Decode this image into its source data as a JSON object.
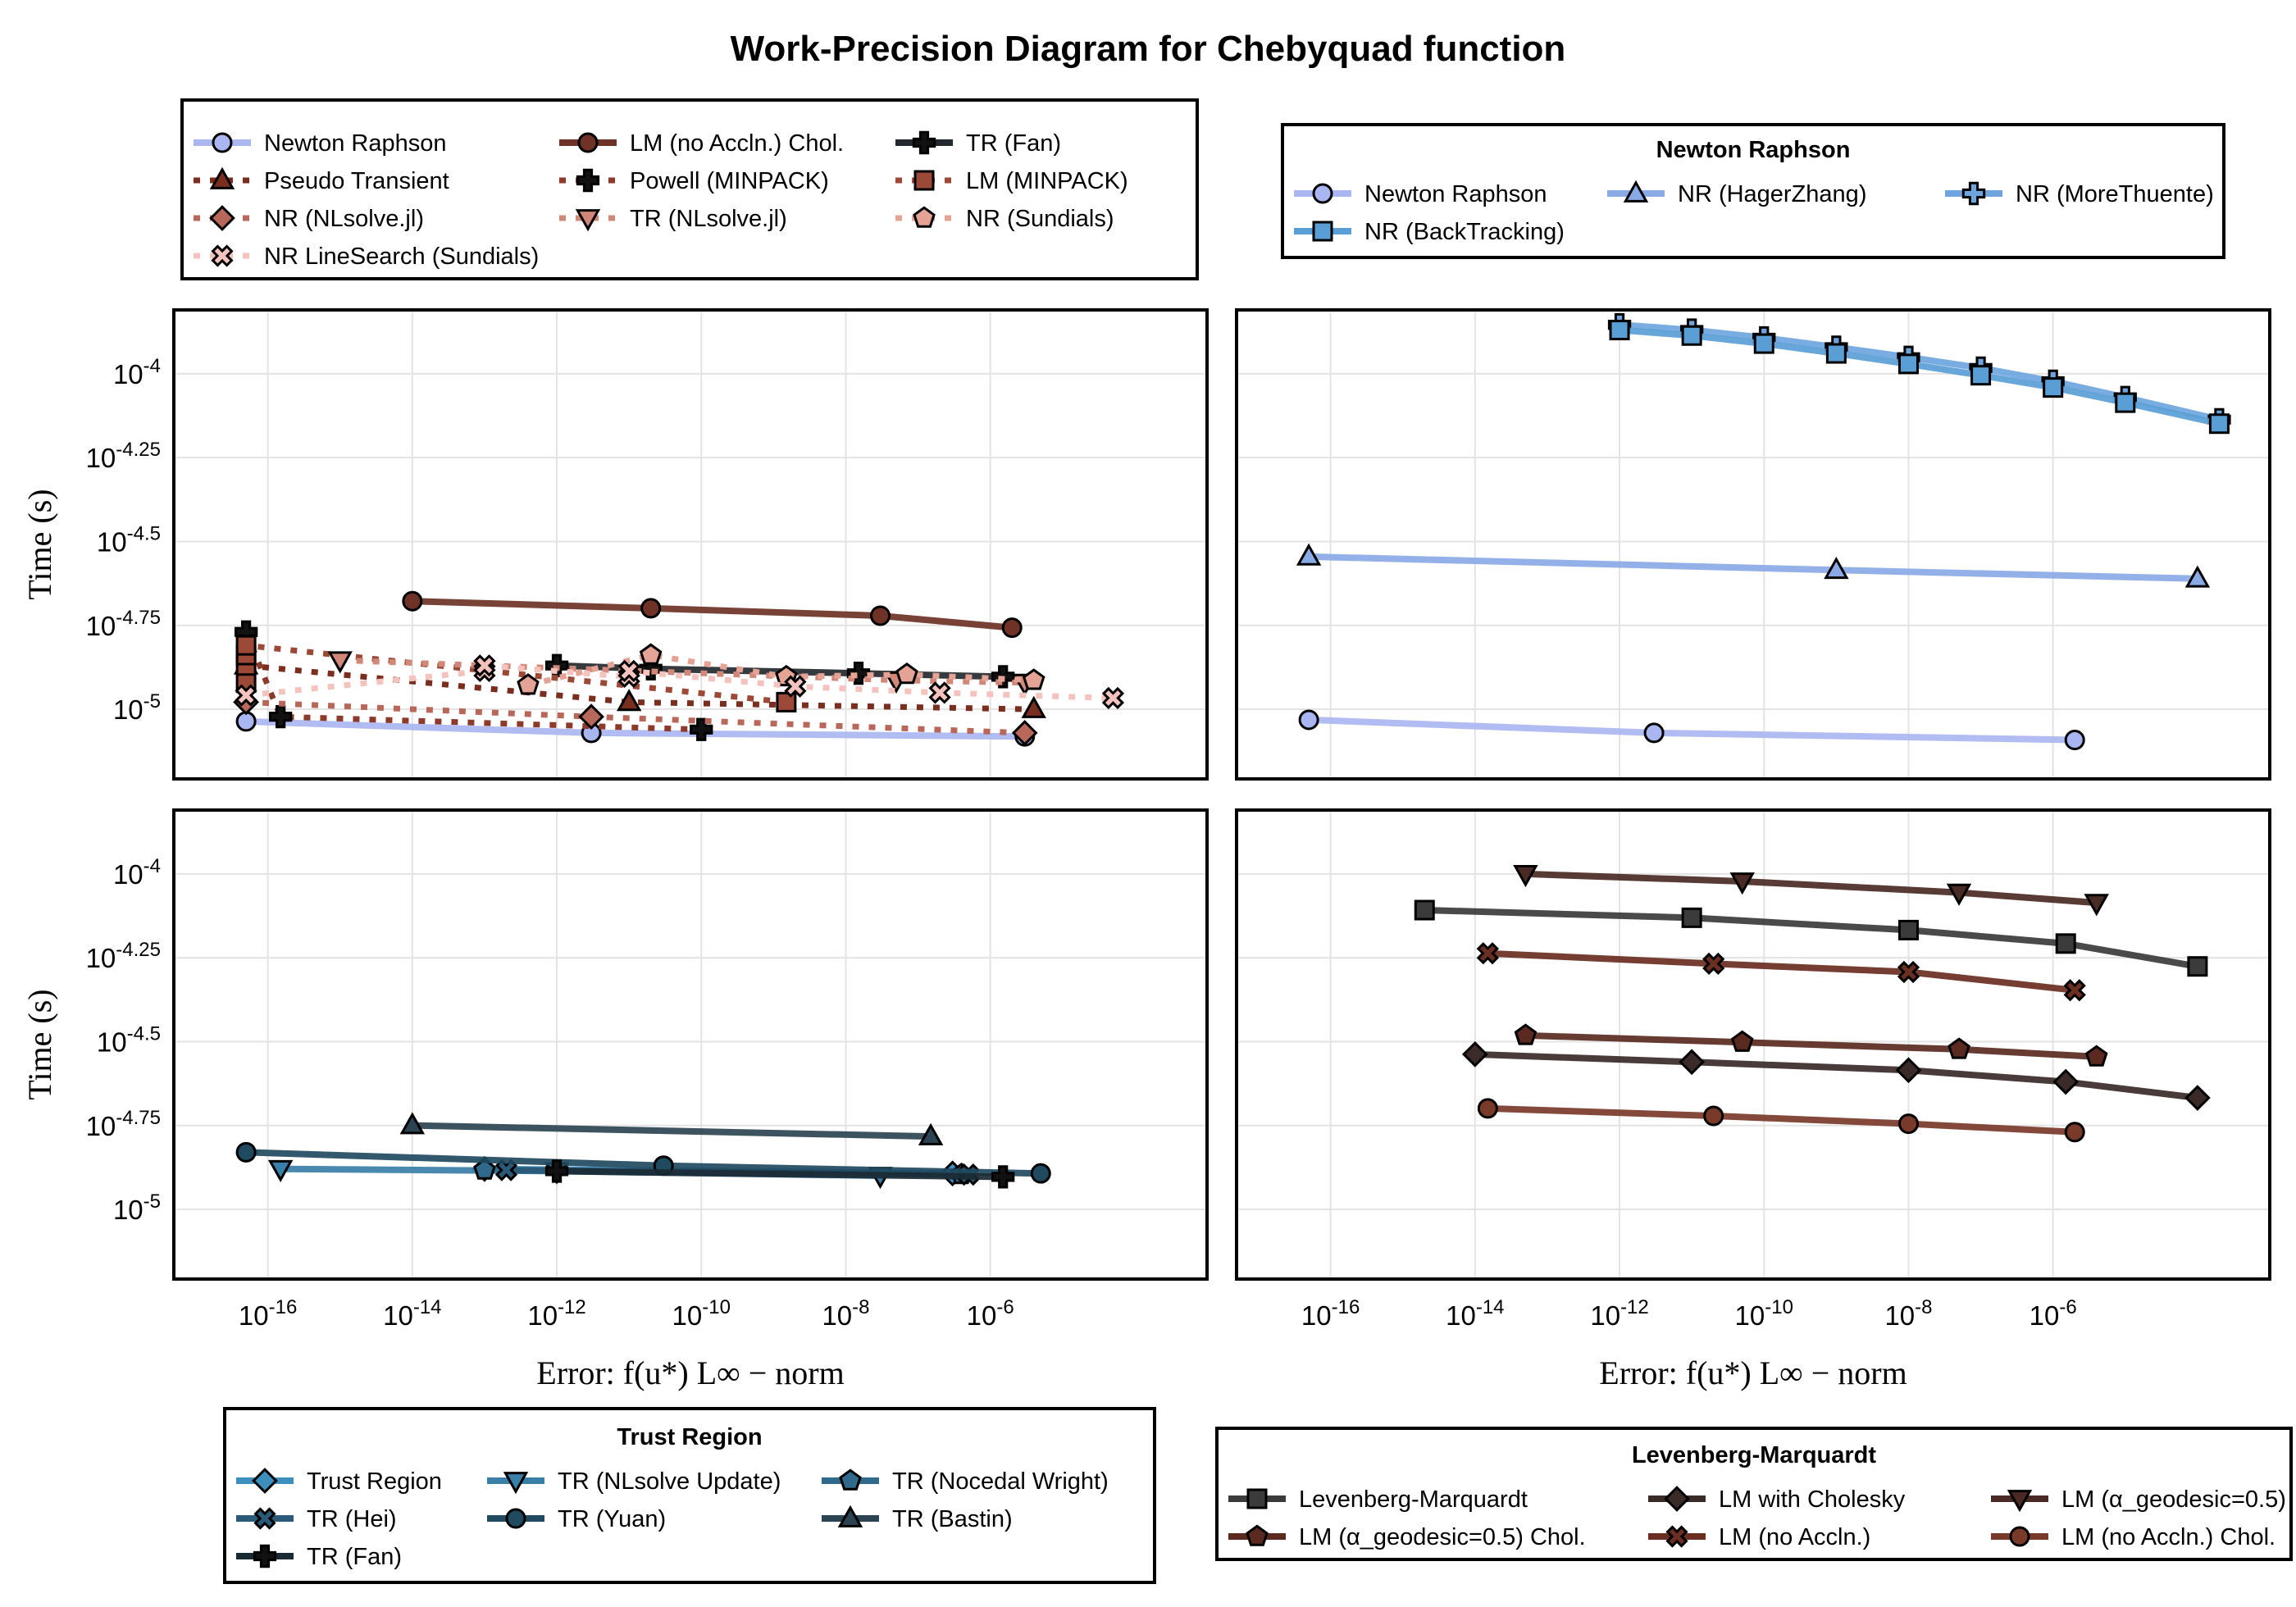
{
  "title": "Work-Precision Diagram for Chebyquad function",
  "x_ticks": [
    "10^-16",
    "10^-14",
    "10^-12",
    "10^-10",
    "10^-8",
    "10^-6"
  ],
  "y_ticks": [
    "10^-4",
    "10^-4.25",
    "10^-4.5",
    "10^-4.75",
    "10^-5"
  ],
  "xlabel": "Error: f(u*) L∞ − norm",
  "ylabel": "Time (s)",
  "chart_data": [
    {
      "type": "line",
      "panel": "top-left",
      "xscale": "log",
      "yscale": "log",
      "xlim": [
        5e-18,
        0.001
      ],
      "ylim": [
        6.2e-06,
        0.000155
      ],
      "grid": true,
      "legend": {
        "title": "",
        "placement": "top-left",
        "columns": 3
      },
      "series": [
        {
          "name": "Newton Raphson",
          "color": "#aab6f2",
          "style": "solid",
          "marker": "circle",
          "x": [
            5e-17,
            3e-12,
            3e-06
          ],
          "y": [
            9.2e-06,
            8.5e-06,
            8.3e-06
          ]
        },
        {
          "name": "LM (no Accln.) Chol.",
          "color": "#6e3226",
          "style": "solid",
          "marker": "circle",
          "x": [
            1e-14,
            2e-11,
            3e-08,
            2e-06
          ],
          "y": [
            2.1e-05,
            2e-05,
            1.9e-05,
            1.75e-05
          ]
        },
        {
          "name": "TR (Fan)",
          "color": "#23292e",
          "style": "solid",
          "marker": "cross",
          "x": [
            1e-12,
            2e-11,
            1.5e-08,
            1.5e-06
          ],
          "y": [
            1.35e-05,
            1.32e-05,
            1.28e-05,
            1.25e-05
          ]
        },
        {
          "name": "Pseudo Transient",
          "color": "#7a2e20",
          "style": "dotted",
          "marker": "triangle",
          "x": [
            5e-17,
            1e-11,
            4e-06
          ],
          "y": [
            1.35e-05,
            1.05e-05,
            1e-05
          ]
        },
        {
          "name": "Powell (MINPACK)",
          "color": "#8b3a2b",
          "style": "dotted",
          "marker": "cross",
          "x": [
            5e-17,
            1.5e-16,
            1e-10
          ],
          "y": [
            1.7e-05,
            9.5e-06,
            8.7e-06
          ]
        },
        {
          "name": "LM (MINPACK)",
          "color": "#9c4a37",
          "style": "dotted",
          "marker": "square",
          "x": [
            5e-17,
            5e-17,
            5e-17,
            5e-17,
            1.5e-09
          ],
          "y": [
            1.2e-05,
            1.35e-05,
            1.45e-05,
            1.55e-05,
            1.05e-05
          ]
        },
        {
          "name": "NR (NLsolve.jl)",
          "color": "#b7685a",
          "style": "dotted",
          "marker": "diamond",
          "x": [
            5e-17,
            3e-12,
            3e-06
          ],
          "y": [
            1.05e-05,
            9.5e-06,
            8.5e-06
          ]
        },
        {
          "name": "TR (NLsolve.jl)",
          "color": "#d18878",
          "style": "dotted",
          "marker": "triangle-down",
          "x": [
            1e-15,
            5e-08,
            3e-06
          ],
          "y": [
            1.4e-05,
            1.22e-05,
            1.2e-05
          ]
        },
        {
          "name": "NR (Sundials)",
          "color": "#e4a395",
          "style": "dotted",
          "marker": "pentagon",
          "x": [
            4e-13,
            2e-11,
            1.5e-09,
            7e-08,
            4e-06
          ],
          "y": [
            1.18e-05,
            1.45e-05,
            1.25e-05,
            1.27e-05,
            1.22e-05
          ]
        },
        {
          "name": "NR LineSearch (Sundials)",
          "color": "#f4c3be",
          "style": "dotted",
          "marker": "x",
          "x": [
            5e-17,
            1e-13,
            1e-13,
            1e-11,
            1e-11,
            2e-09,
            2e-07,
            5e-05
          ],
          "y": [
            1.1e-05,
            1.3e-05,
            1.35e-05,
            1.25e-05,
            1.3e-05,
            1.17e-05,
            1.12e-05,
            1.08e-05
          ]
        }
      ]
    },
    {
      "type": "line",
      "panel": "top-right",
      "xscale": "log",
      "yscale": "log",
      "xlim": [
        5e-18,
        0.001
      ],
      "ylim": [
        6.2e-06,
        0.000155
      ],
      "grid": true,
      "legend": {
        "title": "Newton Raphson",
        "placement": "top-right",
        "columns": 3
      },
      "series": [
        {
          "name": "Newton Raphson",
          "color": "#aab6f2",
          "style": "solid",
          "marker": "circle",
          "x": [
            5e-17,
            3e-12,
            2e-06
          ],
          "y": [
            9.3e-06,
            8.5e-06,
            8.1e-06
          ]
        },
        {
          "name": "NR (HagerZhang)",
          "color": "#8aaae6",
          "style": "solid",
          "marker": "triangle",
          "x": [
            5e-17,
            1e-09,
            0.0001
          ],
          "y": [
            2.85e-05,
            2.6e-05,
            2.45e-05
          ]
        },
        {
          "name": "NR (MoreThuente)",
          "color": "#6ea5de",
          "style": "solid",
          "marker": "plus",
          "x": [
            1e-12,
            1e-11,
            1e-10,
            1e-09,
            1e-08,
            1e-07,
            1e-06,
            1e-05,
            0.0002
          ],
          "y": [
            0.00014,
            0.000135,
            0.000128,
            0.00012,
            0.000112,
            0.000104,
            9.5e-05,
            8.5e-05,
            7.3e-05
          ]
        },
        {
          "name": "NR (BackTracking)",
          "color": "#5a9ed6",
          "style": "solid",
          "marker": "square",
          "x": [
            1e-12,
            1e-11,
            1e-10,
            1e-09,
            1e-08,
            1e-07,
            1e-06,
            1e-05,
            0.0002
          ],
          "y": [
            0.000135,
            0.00013,
            0.000123,
            0.000115,
            0.000107,
            9.9e-05,
            9.1e-05,
            8.2e-05,
            7.1e-05
          ]
        }
      ]
    },
    {
      "type": "line",
      "panel": "bottom-left",
      "xscale": "log",
      "yscale": "log",
      "xlim": [
        5e-18,
        0.001
      ],
      "ylim": [
        6.2e-06,
        0.000155
      ],
      "grid": true,
      "legend": {
        "title": "Trust Region",
        "placement": "bottom-left",
        "columns": 3
      },
      "series": [
        {
          "name": "Trust Region",
          "color": "#3d8fbd",
          "style": "solid",
          "marker": "diamond",
          "x": [
            1e-13,
            3e-07
          ],
          "y": [
            1.32e-05,
            1.28e-05
          ]
        },
        {
          "name": "TR (NLsolve Update)",
          "color": "#3a7fa8",
          "style": "solid",
          "marker": "triangle-down",
          "x": [
            1.5e-16,
            1e-12,
            3e-08
          ],
          "y": [
            1.32e-05,
            1.3e-05,
            1.26e-05
          ]
        },
        {
          "name": "TR (Nocedal Wright)",
          "color": "#2f6a8c",
          "style": "solid",
          "marker": "pentagon",
          "x": [
            1e-13,
            4e-07
          ],
          "y": [
            1.31e-05,
            1.27e-05
          ]
        },
        {
          "name": "TR (Hei)",
          "color": "#2a5a78",
          "style": "solid",
          "marker": "x",
          "x": [
            2e-13,
            5e-07
          ],
          "y": [
            1.31e-05,
            1.27e-05
          ]
        },
        {
          "name": "TR (Yuan)",
          "color": "#204a60",
          "style": "solid",
          "marker": "circle",
          "x": [
            5e-17,
            3e-11,
            5e-06
          ],
          "y": [
            1.48e-05,
            1.35e-05,
            1.28e-05
          ]
        },
        {
          "name": "TR (Bastin)",
          "color": "#2c4452",
          "style": "solid",
          "marker": "triangle",
          "x": [
            1e-14,
            1.5e-07
          ],
          "y": [
            1.78e-05,
            1.65e-05
          ]
        },
        {
          "name": "TR (Fan)",
          "color": "#1a2a33",
          "style": "solid",
          "marker": "cross",
          "x": [
            1e-12,
            1.5e-06
          ],
          "y": [
            1.3e-05,
            1.25e-05
          ]
        }
      ]
    },
    {
      "type": "line",
      "panel": "bottom-right",
      "xscale": "log",
      "yscale": "log",
      "xlim": [
        5e-18,
        0.001
      ],
      "ylim": [
        6.2e-06,
        0.000155
      ],
      "grid": true,
      "legend": {
        "title": "Levenberg-Marquardt",
        "placement": "bottom-right",
        "columns": 3
      },
      "series": [
        {
          "name": "Levenberg-Marquardt",
          "color": "#3b3b3b",
          "style": "solid",
          "marker": "square",
          "x": [
            2e-15,
            1e-11,
            1e-08,
            1.5e-06,
            0.0001
          ],
          "y": [
            7.8e-05,
            7.4e-05,
            6.8e-05,
            6.2e-05,
            5.3e-05
          ]
        },
        {
          "name": "LM with Cholesky",
          "color": "#3a2a28",
          "style": "solid",
          "marker": "diamond",
          "x": [
            1e-14,
            1e-11,
            1e-08,
            1.5e-06,
            0.0001
          ],
          "y": [
            2.9e-05,
            2.75e-05,
            2.6e-05,
            2.4e-05,
            2.15e-05
          ]
        },
        {
          "name": "LM (α_geodesic=0.5)",
          "color": "#4a2a24",
          "style": "solid",
          "marker": "triangle-down",
          "x": [
            5e-14,
            5e-11,
            5e-08,
            4e-06
          ],
          "y": [
            0.0001,
            9.5e-05,
            8.8e-05,
            8.2e-05
          ]
        },
        {
          "name": "LM (α_geodesic=0.5) Chol.",
          "color": "#5a2a20",
          "style": "solid",
          "marker": "pentagon",
          "x": [
            5e-14,
            5e-11,
            5e-08,
            4e-06
          ],
          "y": [
            3.3e-05,
            3.15e-05,
            3e-05,
            2.85e-05
          ]
        },
        {
          "name": "LM (no Accln.)",
          "color": "#6a2e22",
          "style": "solid",
          "marker": "x",
          "x": [
            1.5e-14,
            2e-11,
            1e-08,
            2e-06
          ],
          "y": [
            5.8e-05,
            5.4e-05,
            5.1e-05,
            4.5e-05
          ]
        },
        {
          "name": "LM (no Accln.) Chol.",
          "color": "#7a3a2a",
          "style": "solid",
          "marker": "circle",
          "x": [
            1.5e-14,
            2e-11,
            1e-08,
            2e-06
          ],
          "y": [
            2e-05,
            1.9e-05,
            1.8e-05,
            1.7e-05
          ]
        }
      ]
    }
  ]
}
